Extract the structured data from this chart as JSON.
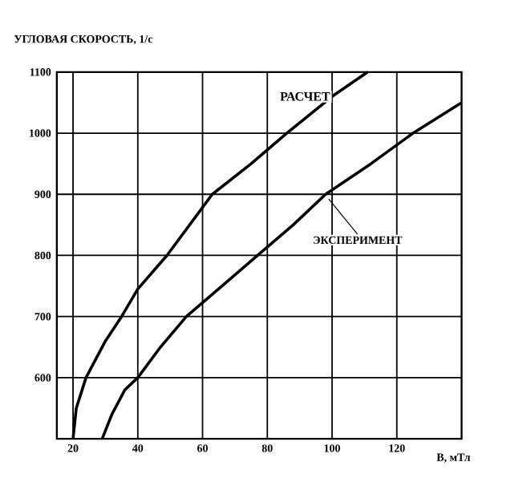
{
  "chart_data": {
    "type": "line",
    "ylabel": "УГЛОВАЯ СКОРОСТЬ, 1/с",
    "xlabel": "В, мТл",
    "xlim": [
      15,
      140
    ],
    "xticks": [
      20,
      40,
      60,
      80,
      100,
      120
    ],
    "ylim": [
      500,
      1100
    ],
    "yticks": [
      600,
      700,
      800,
      900,
      1000,
      1100
    ],
    "grid": true,
    "marker": "none",
    "line_style": "solid",
    "series": [
      {
        "name": "РАСЧЕТ",
        "color": "#000000",
        "x": [
          20,
          21,
          24,
          30,
          35,
          40,
          49,
          63,
          75,
          86,
          100,
          111
        ],
        "values": [
          500,
          550,
          600,
          660,
          700,
          745,
          800,
          900,
          950,
          1000,
          1060,
          1100
        ]
      },
      {
        "name": "ЭКСПЕРИМЕНТ",
        "color": "#000000",
        "x": [
          29,
          32,
          36,
          40,
          47,
          55,
          66,
          77,
          88,
          98,
          112,
          125,
          140
        ],
        "values": [
          500,
          540,
          580,
          600,
          650,
          700,
          750,
          800,
          850,
          900,
          950,
          1000,
          1050
        ]
      }
    ]
  }
}
